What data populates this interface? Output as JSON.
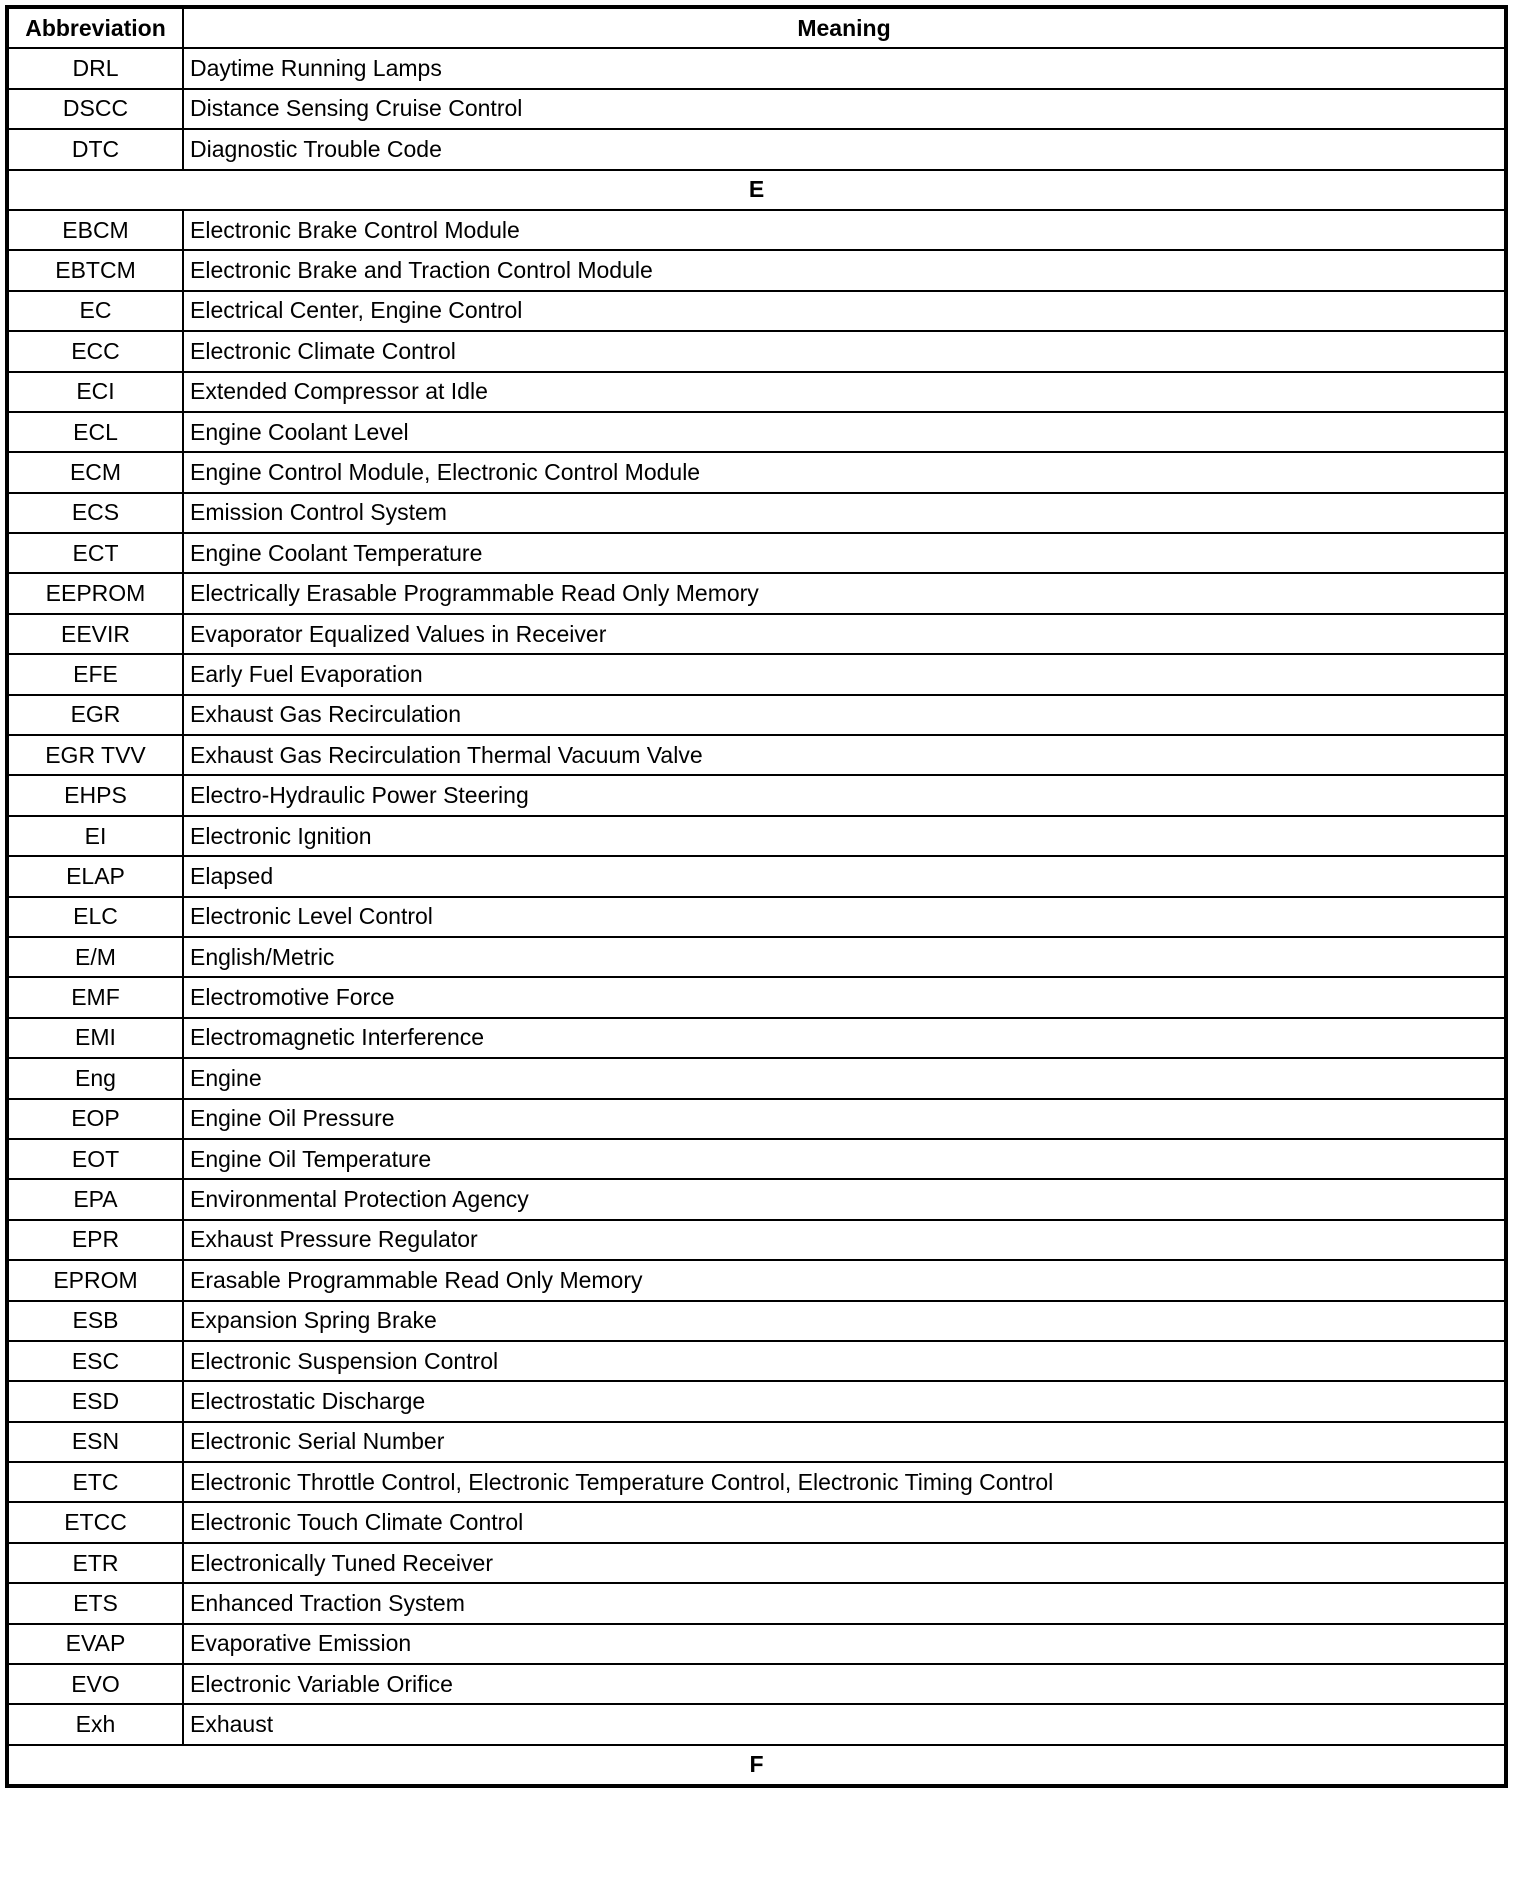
{
  "table": {
    "headers": {
      "abbreviation": "Abbreviation",
      "meaning": "Meaning"
    },
    "rows": [
      {
        "abbr": "DRL",
        "meaning": "Daytime Running Lamps"
      },
      {
        "abbr": "DSCC",
        "meaning": "Distance Sensing Cruise Control"
      },
      {
        "abbr": "DTC",
        "meaning": "Diagnostic Trouble Code"
      },
      {
        "section": "E"
      },
      {
        "abbr": "EBCM",
        "meaning": "Electronic Brake Control Module"
      },
      {
        "abbr": "EBTCM",
        "meaning": "Electronic Brake and Traction Control Module"
      },
      {
        "abbr": "EC",
        "meaning": "Electrical Center, Engine Control"
      },
      {
        "abbr": "ECC",
        "meaning": "Electronic Climate Control"
      },
      {
        "abbr": "ECI",
        "meaning": "Extended Compressor at Idle"
      },
      {
        "abbr": "ECL",
        "meaning": "Engine Coolant Level"
      },
      {
        "abbr": "ECM",
        "meaning": "Engine Control Module, Electronic Control Module"
      },
      {
        "abbr": "ECS",
        "meaning": "Emission Control System"
      },
      {
        "abbr": "ECT",
        "meaning": "Engine Coolant Temperature"
      },
      {
        "abbr": "EEPROM",
        "meaning": "Electrically Erasable Programmable Read Only Memory"
      },
      {
        "abbr": "EEVIR",
        "meaning": "Evaporator Equalized Values in Receiver"
      },
      {
        "abbr": "EFE",
        "meaning": "Early Fuel Evaporation"
      },
      {
        "abbr": "EGR",
        "meaning": "Exhaust Gas Recirculation"
      },
      {
        "abbr": "EGR TVV",
        "meaning": "Exhaust Gas Recirculation Thermal Vacuum Valve"
      },
      {
        "abbr": "EHPS",
        "meaning": "Electro-Hydraulic Power Steering"
      },
      {
        "abbr": "EI",
        "meaning": "Electronic Ignition"
      },
      {
        "abbr": "ELAP",
        "meaning": "Elapsed"
      },
      {
        "abbr": "ELC",
        "meaning": "Electronic Level Control"
      },
      {
        "abbr": "E/M",
        "meaning": "English/Metric"
      },
      {
        "abbr": "EMF",
        "meaning": "Electromotive Force"
      },
      {
        "abbr": "EMI",
        "meaning": "Electromagnetic Interference"
      },
      {
        "abbr": "Eng",
        "meaning": "Engine"
      },
      {
        "abbr": "EOP",
        "meaning": "Engine Oil Pressure"
      },
      {
        "abbr": "EOT",
        "meaning": "Engine Oil Temperature"
      },
      {
        "abbr": "EPA",
        "meaning": "Environmental Protection Agency"
      },
      {
        "abbr": "EPR",
        "meaning": "Exhaust Pressure Regulator"
      },
      {
        "abbr": "EPROM",
        "meaning": "Erasable Programmable Read Only Memory"
      },
      {
        "abbr": "ESB",
        "meaning": "Expansion Spring Brake"
      },
      {
        "abbr": "ESC",
        "meaning": "Electronic Suspension Control"
      },
      {
        "abbr": "ESD",
        "meaning": "Electrostatic Discharge"
      },
      {
        "abbr": "ESN",
        "meaning": "Electronic Serial Number"
      },
      {
        "abbr": "ETC",
        "meaning": "Electronic Throttle Control, Electronic Temperature Control, Electronic Timing Control"
      },
      {
        "abbr": "ETCC",
        "meaning": "Electronic Touch Climate Control"
      },
      {
        "abbr": "ETR",
        "meaning": "Electronically Tuned Receiver"
      },
      {
        "abbr": "ETS",
        "meaning": "Enhanced Traction System"
      },
      {
        "abbr": "EVAP",
        "meaning": "Evaporative Emission"
      },
      {
        "abbr": "EVO",
        "meaning": "Electronic Variable Orifice"
      },
      {
        "abbr": "Exh",
        "meaning": "Exhaust"
      },
      {
        "section": "F"
      }
    ]
  }
}
